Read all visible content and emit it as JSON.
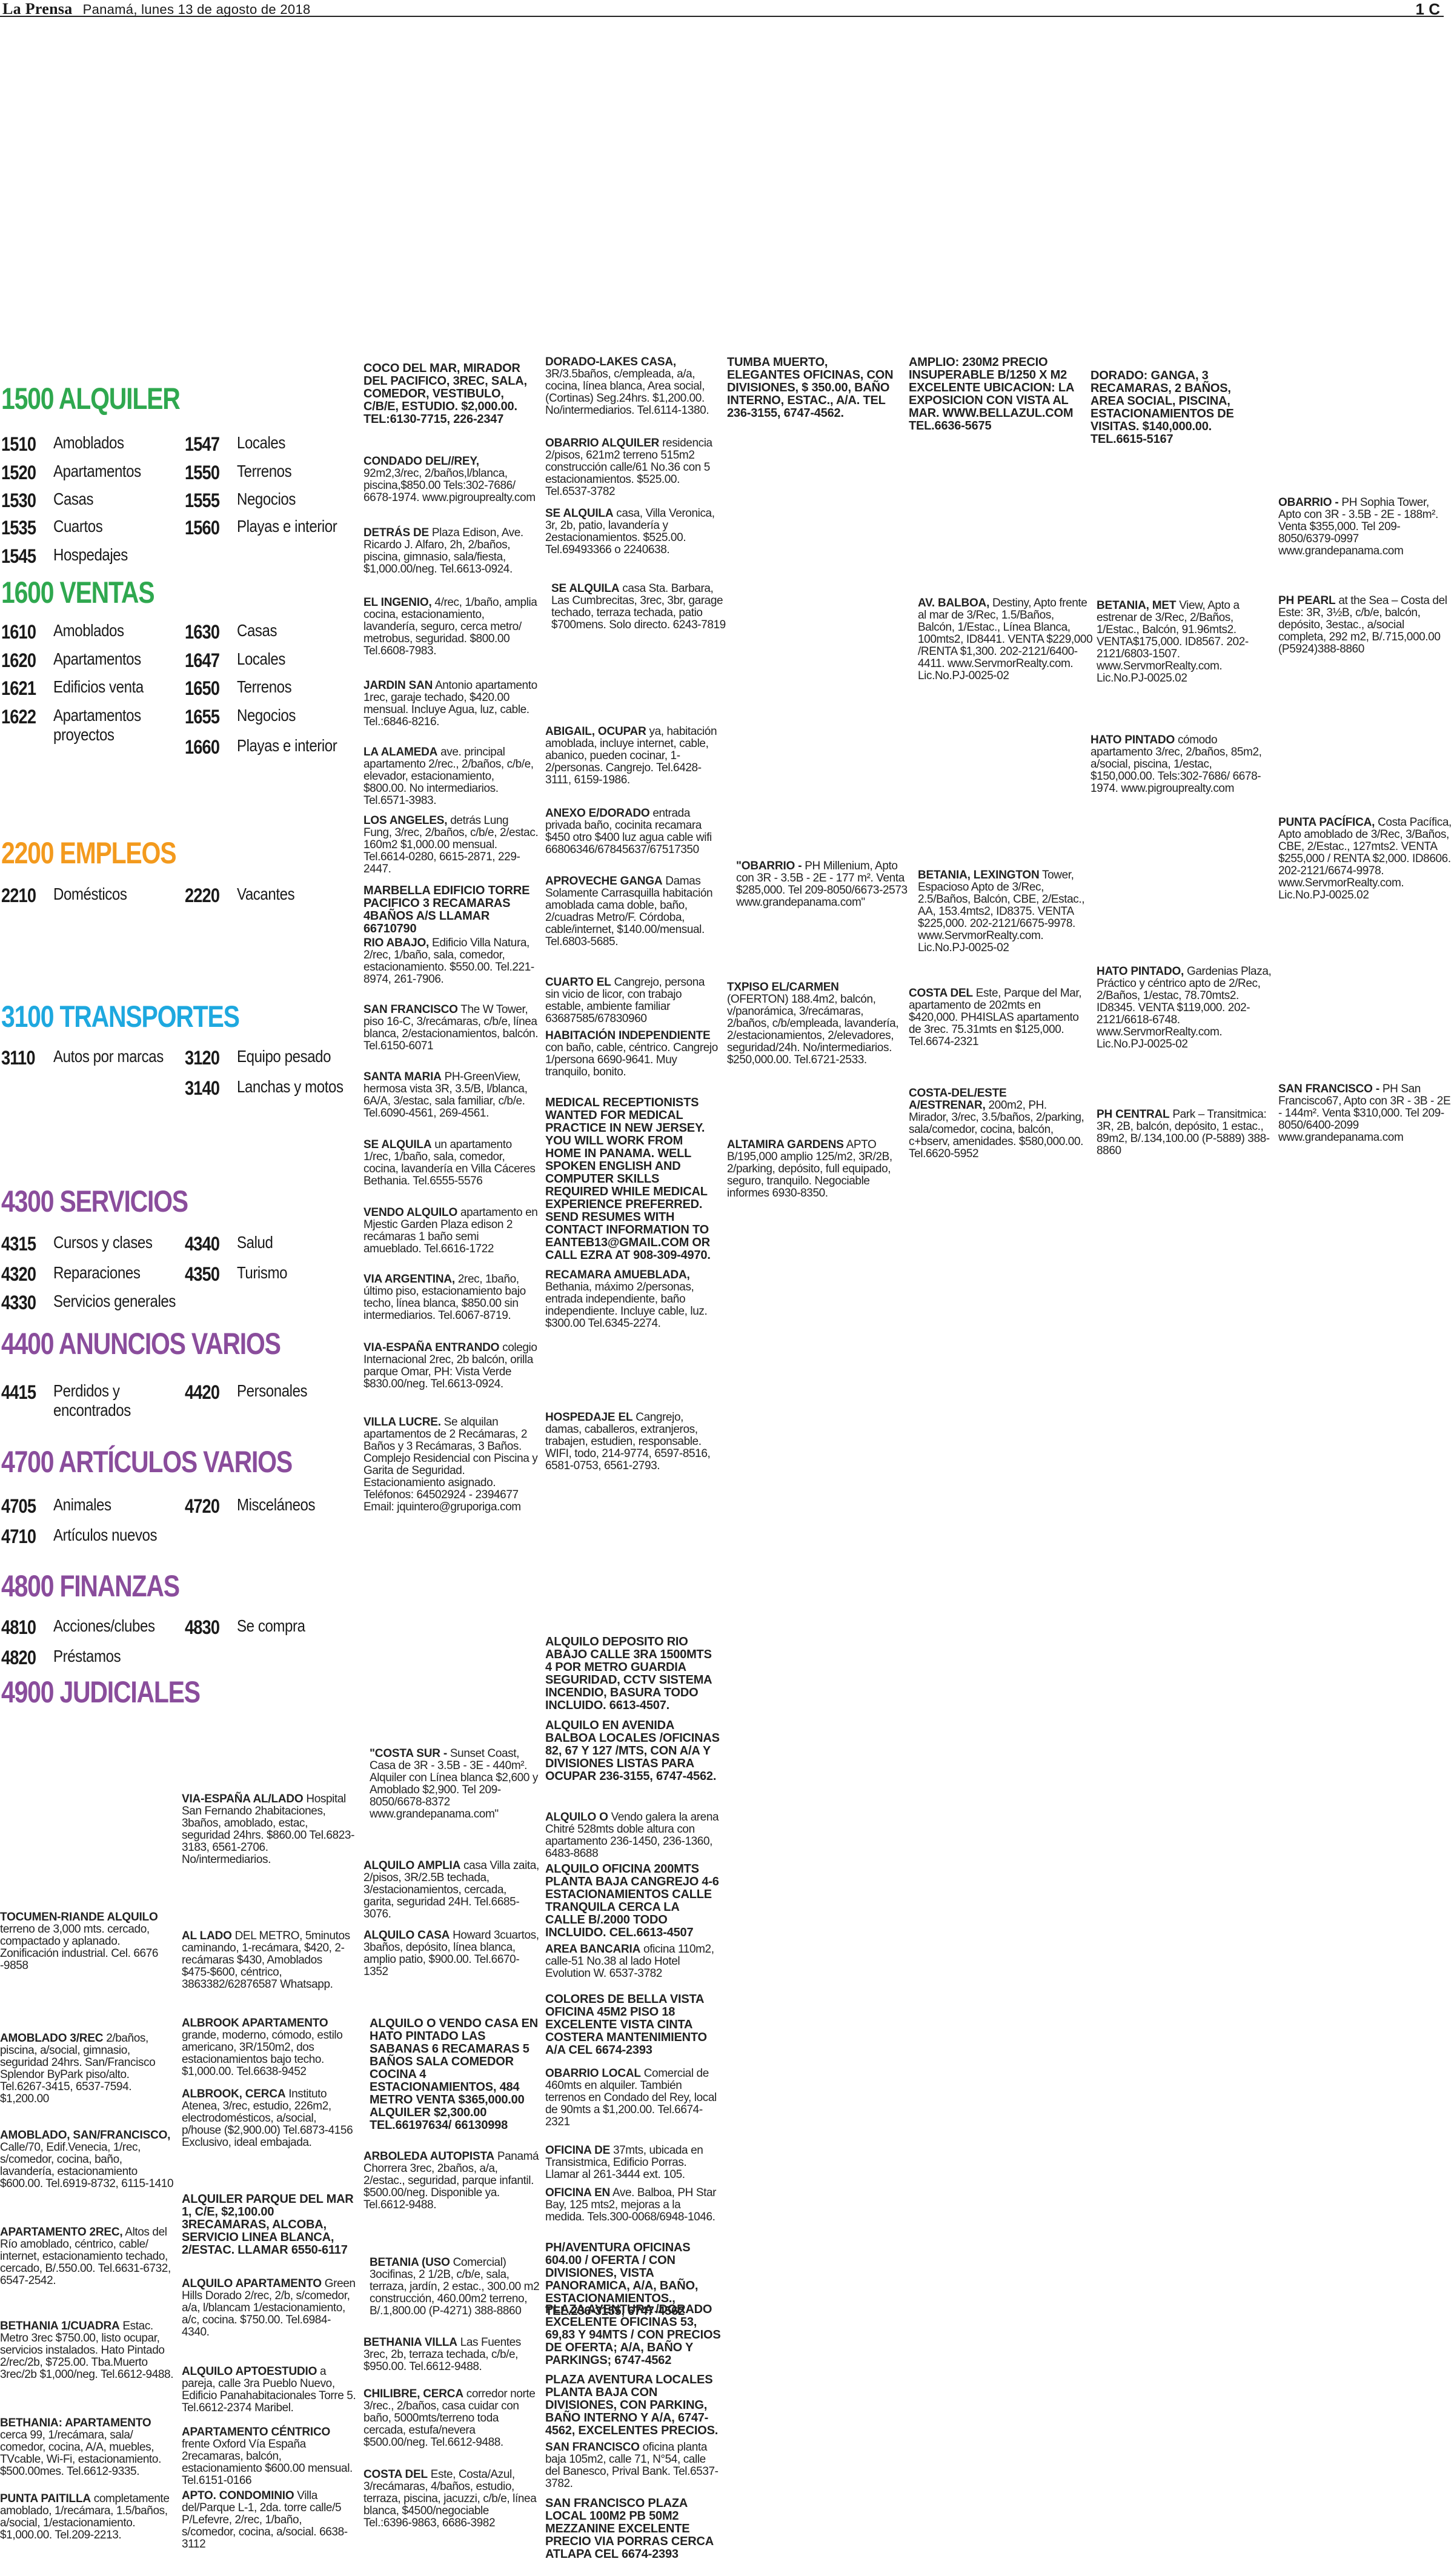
{
  "header": {
    "publication": "La Prensa",
    "date": "Panamá, lunes 13 de agosto de 2018",
    "page": "1 C"
  },
  "colors": {
    "green": "#2fa84f",
    "orange": "#f39a1e",
    "cyan": "#1ea8df",
    "purple": "#8a4d9c"
  },
  "index": {
    "sections": [
      {
        "title": "1500 ALQUILER",
        "color": "green"
      },
      {
        "title": "1600 VENTAS",
        "color": "green"
      },
      {
        "title": "2200 EMPLEOS",
        "color": "orange"
      },
      {
        "title": "3100 TRANSPORTES",
        "color": "cyan"
      },
      {
        "title": "4300 SERVICIOS",
        "color": "purple"
      },
      {
        "title": "4400 ANUNCIOS VARIOS",
        "color": "purple"
      },
      {
        "title": "4700 ARTÍCULOS VARIOS",
        "color": "purple"
      },
      {
        "title": "4800 FINANZAS",
        "color": "purple"
      },
      {
        "title": "4900 JUDICIALES",
        "color": "purple"
      }
    ],
    "entries": [
      {
        "n": "1510",
        "t": "Amoblados"
      },
      {
        "n": "1547",
        "t": "Locales"
      },
      {
        "n": "1520",
        "t": "Apartamentos"
      },
      {
        "n": "1550",
        "t": "Terrenos"
      },
      {
        "n": "1530",
        "t": "Casas"
      },
      {
        "n": "1555",
        "t": "Negocios"
      },
      {
        "n": "1535",
        "t": "Cuartos"
      },
      {
        "n": "1560",
        "t": "Playas e interior"
      },
      {
        "n": "1545",
        "t": "Hospedajes"
      },
      {
        "n": "1610",
        "t": "Amoblados"
      },
      {
        "n": "1630",
        "t": "Casas"
      },
      {
        "n": "1620",
        "t": "Apartamentos"
      },
      {
        "n": "1647",
        "t": "Locales"
      },
      {
        "n": "1621",
        "t": "Edificios venta"
      },
      {
        "n": "1650",
        "t": "Terrenos"
      },
      {
        "n": "1622",
        "t": "Apartamentos proyectos"
      },
      {
        "n": "1655",
        "t": "Negocios"
      },
      {
        "n": "1660",
        "t": "Playas e interior"
      },
      {
        "n": "2210",
        "t": "Domésticos"
      },
      {
        "n": "2220",
        "t": "Vacantes"
      },
      {
        "n": "3110",
        "t": "Autos por marcas"
      },
      {
        "n": "3120",
        "t": "Equipo pesado"
      },
      {
        "n": "3140",
        "t": "Lanchas y motos"
      },
      {
        "n": "4315",
        "t": "Cursos y clases"
      },
      {
        "n": "4340",
        "t": "Salud"
      },
      {
        "n": "4320",
        "t": "Reparaciones"
      },
      {
        "n": "4350",
        "t": "Turismo"
      },
      {
        "n": "4330",
        "t": "Servicios generales"
      },
      {
        "n": "4415",
        "t": "Perdidos y encontrados"
      },
      {
        "n": "4420",
        "t": "Personales"
      },
      {
        "n": "4705",
        "t": "Animales"
      },
      {
        "n": "4720",
        "t": "Misceláneos"
      },
      {
        "n": "4710",
        "t": "Artículos nuevos"
      },
      {
        "n": "4810",
        "t": "Acciones/clubes"
      },
      {
        "n": "4830",
        "t": "Se compra"
      },
      {
        "n": "4820",
        "t": "Préstamos"
      }
    ]
  },
  "ads": [
    {
      "h": "COCO DEL MAR, MIRADOR DEL PACIFICO, 3REC, SALA, COMEDOR, VESTIBULO, C/B/E, ESTUDIO. $2,000.00. TEL:6130-7715, 226-2347",
      "t": ""
    },
    {
      "h": "CONDADO DEL//REY,",
      "t": "92m2,3/rec, 2/baños,l/blanca, piscina,$850.00 Tels:302-7686/ 6678-1974. www.pigrouprealty.com"
    },
    {
      "h": "DETRÁS DE",
      "t": "Plaza Edison, Ave. Ricardo J. Alfaro, 2h, 2/baños, piscina, gimnasio, sala/fiesta, $1,000.00/neg. Tel.6613-0924."
    },
    {
      "h": "EL INGENIO,",
      "t": "4/rec, 1/baño, amplia cocina, estacionamiento, lavandería, seguro, cerca metro/ metrobus, seguridad. $800.00 Tel.6608-7983."
    },
    {
      "h": "JARDIN SAN",
      "t": "Antonio apartamento 1rec, garaje techado, $420.00 mensual. Incluye Agua, luz, cable. Tel.:6846-8216."
    },
    {
      "h": "LA ALAMEDA",
      "t": "ave. principal apartamento 2/rec., 2/baños, c/b/e, elevador, estacionamiento, $800.00. No intermediarios. Tel.6571-3983."
    },
    {
      "h": "LOS ANGELES,",
      "t": "detrás Lung Fung, 3/rec, 2/baños, c/b/e, 2/estac. 160m2 $1,000.00 mensual. Tel.6614-0280, 6615-2871, 229-2447."
    },
    {
      "h": "MARBELLA EDIFICIO TORRE PACIFICO 3 RECAMARAS 4BAÑOS A/S LLAMAR 66710790",
      "t": ""
    },
    {
      "h": "RIO ABAJO,",
      "t": "Edificio Villa Natura, 2/rec, 1/baño, sala, comedor, estacionamiento. $550.00. Tel.221-8974, 261-7906."
    },
    {
      "h": "SAN FRANCISCO",
      "t": "The W Tower, piso 16-C, 3/recámaras, c/b/e, línea blanca, 2/estacionamientos, balcón. Tel.6150-6071"
    },
    {
      "h": "SANTA MARIA",
      "t": "PH-GreenView, hermosa vista 3R, 3.5/B, l/blanca, 6A/A, 3/estac, sala familiar, c/b/e. Tel.6090-4561, 269-4561."
    },
    {
      "h": "SE ALQUILA",
      "t": "un apartamento 1/rec, 1/baño, sala, comedor, cocina, lavandería en Villa Cáceres Bethania. Tel.6555-5576"
    },
    {
      "h": "VENDO ALQUILO",
      "t": "apartamento en Mjestic Garden Plaza edison 2 recámaras 1 baño semi amueblado. Tel.6616-1722"
    },
    {
      "h": "VIA ARGENTINA,",
      "t": "2rec, 1baño, último piso, estacionamiento bajo techo, línea blanca, $850.00 sin intermediarios. Tel.6067-8719."
    },
    {
      "h": "VIA-ESPAÑA ENTRANDO",
      "t": "colegio Internacional 2rec, 2b balcón, orilla parque Omar, PH: Vista Verde $830.00/neg. Tel.6613-0924."
    },
    {
      "h": "VILLA LUCRE.",
      "t": "Se alquilan apartamentos de 2 Recámaras, 2 Baños y 3 Recámaras, 3 Baños. Complejo Residencial con Piscina y Garita de Seguridad. Estacionamiento asignado. Teléfonos: 64502924 - 2394677 Email: jquintero@gruporiga.com"
    },
    {
      "h": "DORADO-LAKES CASA,",
      "t": "3R/3.5baños, c/empleada, a/a, cocina, línea blanca, Area social, (Cortinas) Seg.24hrs. $1,200.00. No/intermediarios. Tel.6114-1380."
    },
    {
      "h": "OBARRIO ALQUILER",
      "t": "residencia 2/pisos, 621m2 terreno 515m2 construcción calle/61 No.36 con 5 estacionamientos. $525.00. Tel.6537-3782"
    },
    {
      "h": "SE ALQUILA",
      "t": "casa, Villa Veronica, 3r, 2b, patio, lavandería y 2estacionamientos. $525.00. Tel.69493366 o 2240638."
    },
    {
      "h": "SE ALQUILA",
      "t": "casa Sta. Barbara, Las Cumbrecitas, 3rec, 3br, garage techado, terraza techada, patio $700mens. Solo directo. 6243-7819"
    },
    {
      "h": "ABIGAIL, OCUPAR",
      "t": "ya, habitación amoblada, incluye internet, cable, abanico, pueden cocinar, 1-2/personas. Cangrejo. Tel.6428-3111, 6159-1986."
    },
    {
      "h": "ANEXO E/DORADO",
      "t": "entrada privada baño, cocinita recamara $450 otro $400 luz agua cable wifi 66806346/67845637/67517350"
    },
    {
      "h": "APROVECHE GANGA",
      "t": "Damas Solamente Carrasquilla habitación amoblada cama doble, baño, 2/cuadras Metro/F. Córdoba, cable/internet, $140.00/mensual. Tel.6803-5685."
    },
    {
      "h": "CUARTO EL",
      "t": "Cangrejo, persona sin vicio de licor, con trabajo estable, ambiente familiar 63687585/67830960"
    },
    {
      "h": "HABITACIÓN INDEPENDIENTE",
      "t": "con baño, cable, céntrico. Cangrejo 1/persona 6690-9641. Muy tranquilo, bonito."
    },
    {
      "h": "MEDICAL RECEPTIONISTS WANTED FOR MEDICAL PRACTICE IN NEW JERSEY. YOU WILL WORK FROM HOME IN PANAMA. WELL SPOKEN ENGLISH AND COMPUTER SKILLS REQUIRED WHILE MEDICAL EXPERIENCE PREFERRED. SEND RESUMES WITH CONTACT INFORMATION TO EANTEB13@GMAIL.COM OR CALL EZRA AT 908-309-4970.",
      "t": ""
    },
    {
      "h": "RECAMARA AMUEBLADA,",
      "t": "Bethania, máximo 2/personas, entrada independiente, baño independiente. Incluye cable, luz. $300.00 Tel.6345-2274."
    },
    {
      "h": "HOSPEDAJE EL",
      "t": "Cangrejo, damas, caballeros, extranjeros, trabajen, estudien, responsable. WIFI, todo, 214-9774, 6597-8516, 6581-0753, 6561-2793."
    },
    {
      "h": "TUMBA MUERTO, ELEGANTES OFICINAS, CON DIVISIONES, $ 350.00, BAÑO INTERNO, ESTAC., A/A. TEL 236-3155, 6747-4562.",
      "t": ""
    },
    {
      "h": "\"OBARRIO -",
      "t": "PH Millenium, Apto con 3R - 3.5B - 2E - 177 m². Venta $285,000. Tel 209-8050/6673-2573 www.grandepanama.com\""
    },
    {
      "h": "TXPISO EL/CARMEN",
      "t": "(OFERTON) 188.4m2, balcón, v/panorámica, 3/recámaras, 2/baños, c/b/empleada, lavandería, 2/estacionamientos, 2/elevadores, seguridad/24h. No/intermediarios. $250,000.00. Tel.6721-2533."
    },
    {
      "h": "ALTAMIRA GARDENS",
      "t": "APTO B/195,000 amplio 125/m2, 3R/2B, 2/parking, depósito, full equipado, seguro, tranquilo. Negociable informes 6930-8350."
    },
    {
      "h": "AMPLIO: 230M2 PRECIO INSUPERABLE B/1250 X M2 EXCELENTE UBICACION: LA EXPOSICION CON VISTA AL MAR. WWW.BELLAZUL.COM TEL.6636-5675",
      "t": ""
    },
    {
      "h": "AV. BALBOA,",
      "t": "Destiny, Apto frente al mar de 3/Rec, 1.5/Baños, Balcón, 1/Estac., Línea Blanca, 100mts2, ID8441. VENTA $229,000 /RENTA $1,300. 202-2121/6400-4411. www.ServmorRealty.com. Lic.No.PJ-0025-02"
    },
    {
      "h": "BETANIA, LEXINGTON",
      "t": "Tower, Espacioso Apto de 3/Rec, 2.5/Baños, Balcón, CBE, 2/Estac., AA, 153.4mts2, ID8375. VENTA $225,000. 202-2121/6675-9978. www.ServmorRealty.com. Lic.No.PJ-0025-02"
    },
    {
      "h": "COSTA DEL",
      "t": "Este, Parque del Mar, apartamento de 202mts en $420,000. PH4ISLAS apartamento de 3rec. 75.31mts en $125,000. Tel.6674-2321"
    },
    {
      "h": "COSTA-DEL/ESTE A/ESTRENAR,",
      "t": "200m2, PH. Mirador, 3/rec, 3.5/baños, 2/parking, sala/comedor, cocina, balcón, c+bserv, amenidades. $580,000.00. Tel.6620-5952"
    },
    {
      "h": "DORADO: GANGA, 3 RECAMARAS, 2 BAÑOS, AREA SOCIAL, PISCINA, ESTACIONAMIENTOS DE VISITAS. $140,000.00. TEL.6615-5167",
      "t": ""
    },
    {
      "h": "BETANIA, MET",
      "t": "View, Apto a estrenar de 3/Rec, 2/Baños, 1/Estac., Balcón, 91.96mts2. VENTA$175,000. ID8567. 202-2121/6803-1507. www.ServmorRealty.com. Lic.No.PJ-0025.02"
    },
    {
      "h": "HATO PINTADO",
      "t": "cómodo apartamento 3/rec, 2/baños, 85m2, a/social, piscina, 1/estac, $150,000.00. Tels:302-7686/ 6678-1974. www.pigrouprealty.com"
    },
    {
      "h": "HATO PINTADO,",
      "t": "Gardenias Plaza, Práctico y céntrico apto de 2/Rec, 2/Baños, 1/estac, 78.70mts2. ID8345. VENTA $119,000. 202-2121/6618-6748. www.ServmorRealty.com. Lic.No.PJ-0025-02"
    },
    {
      "h": "PH CENTRAL",
      "t": "Park – Transitmica: 3R, 2B, balcón, depósito, 1 estac., 89m2, B/.134,100.00 (P-5889) 388-8860"
    },
    {
      "h": "OBARRIO -",
      "t": "PH Sophia Tower, Apto con 3R - 3.5B - 2E - 188m². Venta $355,000. Tel 209-8050/6379-0997 www.grandepanama.com"
    },
    {
      "h": "PH PEARL",
      "t": "at the Sea – Costa del Este: 3R, 3½B, c/b/e, balcón, depósito, 3estac., a/social completa, 292 m2, B/.715,000.00 (P5924)388-8860"
    },
    {
      "h": "PUNTA PACÍFICA,",
      "t": "Costa Pacífica, Apto amoblado de 3/Rec, 3/Baños, CBE, 2/Estac., 127mts2. VENTA $255,000 / RENTA $2,000. ID8606. 202-2121/6674-9978. www.ServmorRealty.com. Lic.No.PJ-0025.02"
    },
    {
      "h": "SAN FRANCISCO -",
      "t": "PH San Francisco67, Apto con 3R - 3B - 2E - 144m². Venta $310,000. Tel 209-8050/6400-2099 www.grandepanama.com"
    },
    {
      "h": "TOCUMEN-RIANDE ALQUILO",
      "t": "terreno de 3,000 mts. cercado, compactado y aplanado. Zonificación industrial. Cel. 6676 -9858"
    },
    {
      "h": "AMOBLADO 3/REC",
      "t": "2/baños, piscina, a/social, gimnasio, seguridad 24hrs. San/Francisco Splendor ByPark piso/alto. Tel.6267-3415, 6537-7594. $1,200.00"
    },
    {
      "h": "AMOBLADO, SAN/FRANCISCO,",
      "t": "Calle/70, Edif.Venecia, 1/rec, s/comedor, cocina, baño, lavandería, estacionamiento $600.00. Tel.6919-8732, 6115-1410"
    },
    {
      "h": "APARTAMENTO 2REC,",
      "t": "Altos del Río amoblado, céntrico, cable/ internet, estacionamiento techado, cercado, B/.550.00. Tel.6631-6732, 6547-2542."
    },
    {
      "h": "BETHANIA 1/CUADRA",
      "t": "Estac. Metro 3rec $750.00, listo ocupar, servicios instalados. Hato Pintado 2/rec/2b, $725.00. Tba.Muerto 3rec/2b $1,000/neg. Tel.6612-9488."
    },
    {
      "h": "BETHANIA: APARTAMENTO",
      "t": "cerca 99, 1/recámara, sala/ comedor, cocina, A/A, muebles, TVcable, Wi-Fi, estacionamiento. $500.00mes. Tel.6612-9335."
    },
    {
      "h": "PUNTA PAITILLA",
      "t": "completamente amoblado, 1/recámara, 1.5/baños, a/social, 1/estacionamiento. $1,000.00. Tel.209-2213."
    },
    {
      "h": "VIA-ESPAÑA AL/LADO",
      "t": "Hospital San Fernando 2habitaciones, 3baños, amoblado, estac, seguridad 24hrs. $860.00 Tel.6823-3183, 6561-2706. No/intermediarios."
    },
    {
      "h": "AL LADO",
      "t": "DEL METRO, 5minutos caminando, 1-recámara, $420, 2-recámaras $430, Amoblados $475-$600, céntrico, 3863382/62876587 Whatsapp."
    },
    {
      "h": "ALBROOK APARTAMENTO",
      "t": "grande, moderno, cómodo, estilo americano, 3R/150m2, dos estacionamientos bajo techo. $1,000.00. Tel.6638-9452"
    },
    {
      "h": "ALBROOK, CERCA",
      "t": "Instituto Atenea, 3/rec, estudio, 226m2, electrodomésticos, a/social, p/house ($2,900.00) Tel.6873-4156 Exclusivo, ideal embajada."
    },
    {
      "h": "ALQUILER PARQUE DEL MAR 1, C/E, $2,100.00 3RECAMARAS, ALCOBA, SERVICIO LINEA BLANCA, 2/ESTAC. LLAMAR 6550-6117",
      "t": ""
    },
    {
      "h": "ALQUILO APARTAMENTO",
      "t": "Green Hills Dorado 2/rec, 2/b, s/comedor, a/a, l/blancam 1/estacionamiento, a/c, cocina. $750.00. Tel.6984-4340."
    },
    {
      "h": "ALQUILO APTOESTUDIO",
      "t": "a pareja, calle 3ra Pueblo Nuevo, Edificio Panahabitacionales Torre 5. Tel.6612-2374 Maribel."
    },
    {
      "h": "APARTAMENTO CÉNTRICO",
      "t": "frente Oxford Vía España 2recamaras, balcón, estacionamiento $600.00 mensual. Tel.6151-0166"
    },
    {
      "h": "APTO. CONDOMINIO",
      "t": "Villa del/Parque L-1, 2da. torre calle/5 P/Lefevre, 2/rec, 1/baño, s/comedor, cocina, a/social. 6638-3112"
    },
    {
      "h": "\"COSTA SUR -",
      "t": "Sunset Coast, Casa de 3R - 3.5B - 3E - 440m². Alquiler con Línea blanca $2,600 y Amoblado $2,900. Tel 209-8050/6678-8372 www.grandepanama.com\""
    },
    {
      "h": "ALQUILO AMPLIA",
      "t": "casa Villa zaita, 2/pisos, 3R/2.5B techada, 3/estacionamientos, cercada, garita, seguridad 24H. Tel.6685-3076."
    },
    {
      "h": "ALQUILO CASA",
      "t": "Howard 3cuartos, 3baños, depósito, línea blanca, amplio patio, $900.00. Tel.6670-1352"
    },
    {
      "h": "ALQUILO O VENDO CASA EN HATO PINTADO LAS SABANAS 6 RECAMARAS 5 BAÑOS SALA COMEDOR COCINA 4 ESTACIONAMIENTOS, 484 METRO VENTA $365,000.00 ALQUILER $2,300.00 TEL.66197634/ 66130998",
      "t": ""
    },
    {
      "h": "ARBOLEDA AUTOPISTA",
      "t": "Panamá Chorrera 3rec, 2baños, a/a, 2/estac., seguridad, parque infantil. $500.00/neg. Disponible ya. Tel.6612-9488."
    },
    {
      "h": "BETANIA (USO",
      "t": "Comercial) 3ocifinas, 2 1/2B, c/b/e, sala, terraza, jardín, 2 estac., 300.00 m2 construcción, 460.00m2 terreno, B/.1,800.00 (P-4271) 388-8860"
    },
    {
      "h": "BETHANIA VILLA",
      "t": "Las Fuentes 3rec, 2b, terraza techada, c/b/e, $950.00. Tel.6612-9488."
    },
    {
      "h": "CHILIBRE, CERCA",
      "t": "corredor norte 3/rec., 2/baños, casa cuidar con baño, 5000mts/terreno toda cercada, estufa/nevera $500.00/neg. Tel.6612-9488."
    },
    {
      "h": "COSTA DEL",
      "t": "Este, Costa/Azul, 3/recámaras, 4/baños, estudio, terraza, piscina, jacuzzi, c/b/e, línea blanca, $4500/negociable Tel.:6396-9863, 6686-3982"
    },
    {
      "h": "ALQUILO DEPOSITO RIO ABAJO CALLE 3RA 1500MTS 4 POR METRO GUARDIA SEGURIDAD, CCTV SISTEMA INCENDIO, BASURA TODO INCLUIDO. 6613-4507.",
      "t": ""
    },
    {
      "h": "ALQUILO EN AVENIDA BALBOA LOCALES /OFICINAS 82, 67 Y 127 /MTS, CON A/A Y DIVISIONES LISTAS PARA OCUPAR 236-3155, 6747-4562.",
      "t": ""
    },
    {
      "h": "ALQUILO O",
      "t": "Vendo galera la arena Chitré 528mts doble altura con apartamento 236-1450, 236-1360, 6483-8688"
    },
    {
      "h": "ALQUILO OFICINA 200MTS PLANTA BAJA CANGREJO 4-6 ESTACIONAMIENTOS CALLE TRANQUILA CERCA LA CALLE B/.2000 TODO INCLUIDO. CEL.6613-4507",
      "t": ""
    },
    {
      "h": "AREA BANCARIA",
      "t": "oficina 110m2, calle-51 No.38 al lado Hotel Evolution W. 6537-3782"
    },
    {
      "h": "COLORES DE BELLA VISTA OFICINA 45M2 PISO 18 EXCELENTE VISTA CINTA COSTERA MANTENIMIENTO A/A CEL 6674-2393",
      "t": ""
    },
    {
      "h": "OBARRIO LOCAL",
      "t": "Comercial de 460mts en alquiler. También terrenos en Condado del Rey, local de 90mts a $1,200.00. Tel.6674-2321"
    },
    {
      "h": "OFICINA DE",
      "t": "37mts, ubicada en Transistmica, Edificio Porras. Llamar al 261-3444 ext. 105."
    },
    {
      "h": "OFICINA EN",
      "t": "Ave. Balboa, PH Star Bay, 125 mts2, mejoras a la medida. Tels.300-0068/6948-1046."
    },
    {
      "h": "PH/AVENTURA OFICINAS 604.00 / OFERTA / CON DIVISIONES, VISTA PANORAMICA, A/A, BAÑO, ESTACIONAMIENTOS., TEL.236-3155, 6747-4562",
      "t": ""
    },
    {
      "h": "PLAZA AVENTURA /DORADO EXCELENTE OFICINAS 53, 69,83 Y 94MTS / CON PRECIOS DE OFERTA; A/A, BAÑO Y PARKINGS; 6747-4562",
      "t": ""
    },
    {
      "h": "PLAZA AVENTURA LOCALES PLANTA BAJA CON DIVISIONES, CON PARKING, BAÑO INTERNO Y A/A, 6747-4562, EXCELENTES PRECIOS.",
      "t": ""
    },
    {
      "h": "SAN FRANCISCO",
      "t": "oficina planta baja 105m2, calle 71, N°54, calle del Banesco, Prival Bank. Tel.6537-3782."
    },
    {
      "h": "SAN FRANCISCO PLAZA LOCAL 100M2 PB 50M2 MEZZANINE EXCELENTE PRECIO VIA PORRAS CERCA ATLAPA CEL 6674-2393",
      "t": ""
    }
  ]
}
